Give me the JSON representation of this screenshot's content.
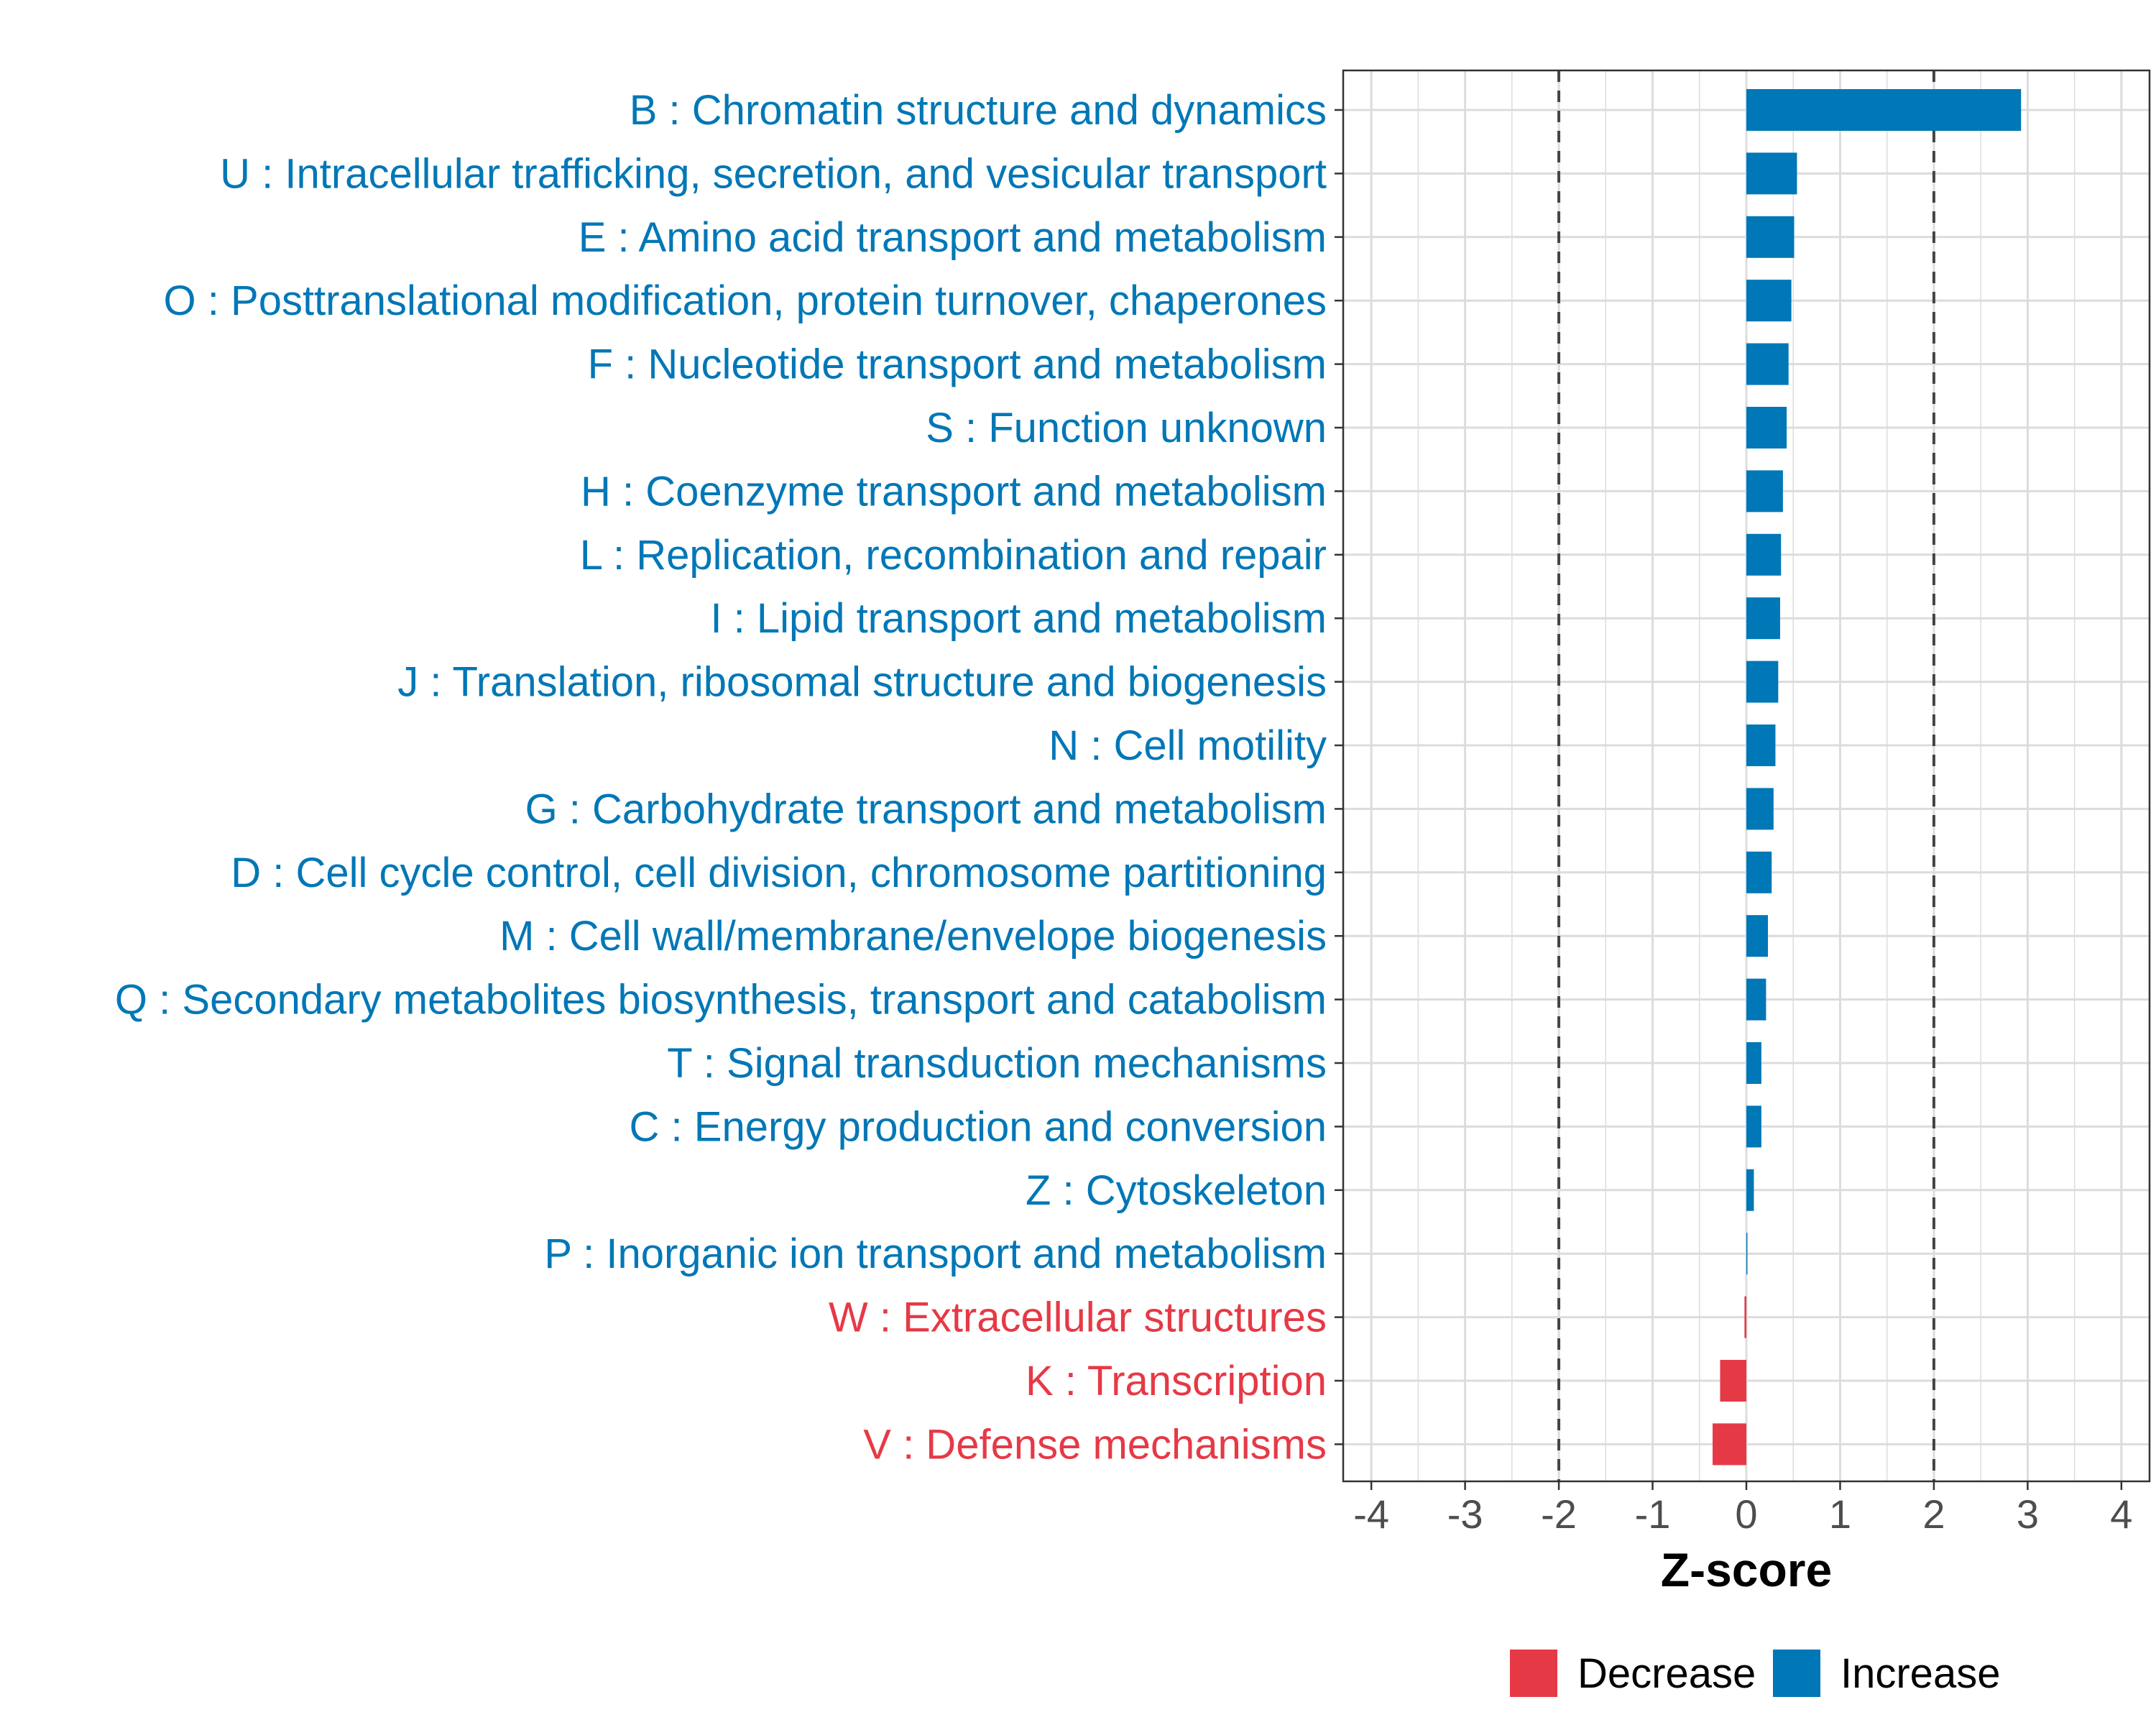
{
  "chart_data": {
    "type": "bar",
    "orientation": "horizontal",
    "xlabel": "Z-score",
    "xlim": [
      -4.3,
      4.3
    ],
    "xticks": [
      -4,
      -3,
      -2,
      -1,
      0,
      1,
      2,
      3,
      4
    ],
    "xtick_labels": [
      "-4",
      "-3",
      "-2",
      "-1",
      "0",
      "1",
      "2",
      "3",
      "4"
    ],
    "threshold_lines": [
      -2,
      2
    ],
    "grid": true,
    "colors": {
      "Decrease": "#e63946",
      "Increase": "#0077b6"
    },
    "categories": [
      "B : Chromatin structure and dynamics",
      "U : Intracellular trafficking, secretion, and vesicular transport",
      "E : Amino acid transport and metabolism",
      "O : Posttranslational modification, protein turnover, chaperones",
      "F : Nucleotide transport and metabolism",
      "S : Function unknown",
      "H : Coenzyme transport and metabolism",
      "L : Replication, recombination and repair",
      "I : Lipid transport and metabolism",
      "J : Translation, ribosomal structure and biogenesis",
      "N : Cell motility",
      "G : Carbohydrate transport and metabolism",
      "D : Cell cycle control, cell division, chromosome partitioning",
      "M : Cell wall/membrane/envelope biogenesis",
      "Q : Secondary metabolites biosynthesis, transport and catabolism",
      "T : Signal transduction mechanisms",
      "C : Energy production and conversion",
      "Z : Cytoskeleton",
      "P : Inorganic ion transport and metabolism",
      "W : Extracellular structures",
      "K : Transcription",
      "V : Defense mechanisms"
    ],
    "values": [
      2.93,
      0.54,
      0.51,
      0.48,
      0.45,
      0.43,
      0.39,
      0.37,
      0.36,
      0.34,
      0.31,
      0.29,
      0.27,
      0.23,
      0.21,
      0.16,
      0.16,
      0.08,
      0.01,
      -0.02,
      -0.28,
      -0.36
    ],
    "direction": [
      "Increase",
      "Increase",
      "Increase",
      "Increase",
      "Increase",
      "Increase",
      "Increase",
      "Increase",
      "Increase",
      "Increase",
      "Increase",
      "Increase",
      "Increase",
      "Increase",
      "Increase",
      "Increase",
      "Increase",
      "Increase",
      "Increase",
      "Decrease",
      "Decrease",
      "Decrease"
    ],
    "legend": {
      "placement": "bottom",
      "entries": [
        "Decrease",
        "Increase"
      ]
    }
  }
}
